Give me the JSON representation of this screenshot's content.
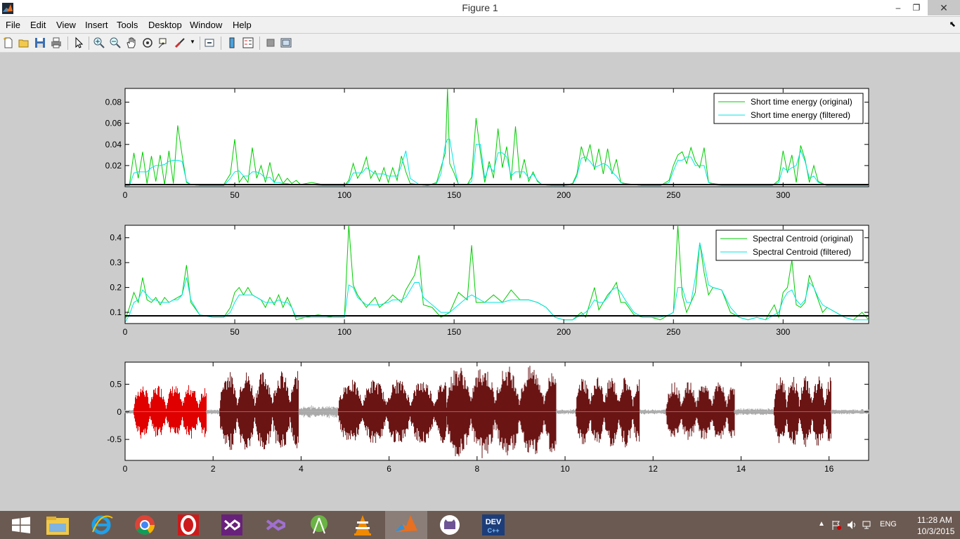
{
  "window": {
    "title": "Figure 1",
    "controls": {
      "minimize": "–",
      "maximize": "❐",
      "close": "✕"
    }
  },
  "menubar": {
    "items": [
      "File",
      "Edit",
      "View",
      "Insert",
      "Tools",
      "Desktop",
      "Window",
      "Help"
    ],
    "overflow_icon": "dock-arrow-icon"
  },
  "toolbar": {
    "buttons": [
      "new-figure-icon",
      "open-file-icon",
      "save-icon",
      "print-icon",
      "edit-plot-arrow-icon",
      "zoom-in-icon",
      "zoom-out-icon",
      "pan-hand-icon",
      "rotate-3d-icon",
      "data-cursor-icon",
      "brush-icon",
      "link-plot-icon",
      "insert-colorbar-icon",
      "insert-legend-icon",
      "hide-plot-tools-icon",
      "show-plot-tools-icon"
    ]
  },
  "colors": {
    "original": "#00cc00",
    "filtered": "#00e5e5",
    "threshold": "#000000",
    "voiced": "#6b1414",
    "selected": "#e00000",
    "silence": "#aaaaaa",
    "background": "#cccccc",
    "taskbar": "#6b5a52"
  },
  "chart_data": [
    {
      "type": "line",
      "title": "",
      "xlabel": "",
      "ylabel": "",
      "xlim": [
        0,
        339
      ],
      "ylim": [
        0,
        0.093
      ],
      "xticks": [
        "0",
        "50",
        "100",
        "150",
        "200",
        "250",
        "300"
      ],
      "yticks": [
        "0.02",
        "0.04",
        "0.06",
        "0.08"
      ],
      "legend_position": "top-right",
      "threshold": 0.002,
      "x": [
        0,
        2,
        4,
        6,
        8,
        10,
        12,
        14,
        16,
        18,
        20,
        22,
        24,
        26,
        28,
        30,
        35,
        40,
        45,
        48,
        50,
        52,
        54,
        56,
        58,
        60,
        62,
        64,
        66,
        68,
        70,
        72,
        74,
        76,
        78,
        80,
        85,
        90,
        95,
        100,
        102,
        104,
        106,
        108,
        110,
        112,
        114,
        116,
        118,
        120,
        122,
        124,
        126,
        128,
        130,
        134,
        138,
        142,
        144,
        146,
        147,
        148,
        150,
        152,
        156,
        158,
        160,
        162,
        164,
        166,
        168,
        170,
        172,
        174,
        176,
        178,
        180,
        182,
        184,
        186,
        188,
        190,
        195,
        200,
        204,
        206,
        208,
        210,
        212,
        214,
        216,
        218,
        220,
        222,
        224,
        226,
        228,
        232,
        236,
        240,
        244,
        248,
        250,
        252,
        254,
        256,
        258,
        260,
        262,
        264,
        266,
        268,
        272,
        280,
        290,
        295,
        298,
        300,
        302,
        304,
        306,
        308,
        310,
        312,
        314,
        316,
        320,
        330,
        339
      ],
      "series": [
        {
          "name": "Short time energy (original)",
          "values": [
            0.001,
            0.002,
            0.032,
            0.008,
            0.033,
            0.003,
            0.029,
            0.005,
            0.03,
            0.002,
            0.034,
            0.003,
            0.058,
            0.03,
            0.004,
            0.002,
            0.001,
            0.001,
            0.002,
            0.012,
            0.045,
            0.004,
            0.01,
            0.004,
            0.037,
            0.008,
            0.02,
            0.004,
            0.023,
            0.004,
            0.012,
            0.003,
            0.008,
            0.003,
            0.006,
            0.002,
            0.004,
            0.002,
            0.001,
            0.001,
            0.006,
            0.022,
            0.008,
            0.015,
            0.028,
            0.008,
            0.015,
            0.005,
            0.018,
            0.004,
            0.018,
            0.006,
            0.029,
            0.014,
            0.003,
            0.002,
            0.001,
            0.004,
            0.018,
            0.032,
            0.094,
            0.022,
            0.013,
            0.002,
            0.002,
            0.009,
            0.065,
            0.032,
            0.004,
            0.024,
            0.008,
            0.055,
            0.018,
            0.038,
            0.006,
            0.057,
            0.008,
            0.026,
            0.005,
            0.014,
            0.005,
            0.002,
            0.001,
            0.001,
            0.003,
            0.012,
            0.038,
            0.024,
            0.04,
            0.016,
            0.036,
            0.012,
            0.036,
            0.012,
            0.026,
            0.004,
            0.003,
            0.002,
            0.001,
            0.001,
            0.001,
            0.006,
            0.02,
            0.03,
            0.033,
            0.022,
            0.037,
            0.024,
            0.018,
            0.037,
            0.004,
            0.003,
            0.002,
            0.001,
            0.002,
            0.001,
            0.006,
            0.034,
            0.013,
            0.03,
            0.004,
            0.039,
            0.026,
            0.004,
            0.02,
            0.005,
            0.001,
            0.001,
            0.001
          ]
        },
        {
          "name": "Short time energy (filtered)",
          "values": [
            0.001,
            0.001,
            0.013,
            0.014,
            0.014,
            0.014,
            0.018,
            0.02,
            0.02,
            0.021,
            0.024,
            0.025,
            0.025,
            0.024,
            0.005,
            0.002,
            0.001,
            0.001,
            0.001,
            0.008,
            0.014,
            0.015,
            0.01,
            0.01,
            0.014,
            0.014,
            0.012,
            0.008,
            0.009,
            0.004,
            0.004,
            0.003,
            0.003,
            0.002,
            0.002,
            0.002,
            0.002,
            0.001,
            0.001,
            0.001,
            0.004,
            0.013,
            0.013,
            0.013,
            0.018,
            0.015,
            0.012,
            0.012,
            0.012,
            0.01,
            0.01,
            0.01,
            0.02,
            0.034,
            0.008,
            0.002,
            0.001,
            0.003,
            0.012,
            0.04,
            0.045,
            0.045,
            0.02,
            0.002,
            0.002,
            0.005,
            0.04,
            0.04,
            0.008,
            0.02,
            0.014,
            0.032,
            0.032,
            0.028,
            0.01,
            0.014,
            0.014,
            0.014,
            0.008,
            0.012,
            0.006,
            0.002,
            0.001,
            0.001,
            0.002,
            0.01,
            0.027,
            0.028,
            0.024,
            0.018,
            0.02,
            0.022,
            0.02,
            0.014,
            0.01,
            0.004,
            0.002,
            0.002,
            0.001,
            0.001,
            0.001,
            0.004,
            0.015,
            0.025,
            0.025,
            0.028,
            0.028,
            0.02,
            0.02,
            0.02,
            0.004,
            0.002,
            0.001,
            0.001,
            0.001,
            0.001,
            0.004,
            0.018,
            0.015,
            0.018,
            0.02,
            0.034,
            0.024,
            0.008,
            0.01,
            0.004,
            0.001,
            0.001,
            0.001
          ]
        }
      ]
    },
    {
      "type": "line",
      "title": "",
      "xlabel": "",
      "ylabel": "",
      "xlim": [
        0,
        339
      ],
      "ylim": [
        0.055,
        0.45
      ],
      "xticks": [
        "0",
        "50",
        "100",
        "150",
        "200",
        "250",
        "300"
      ],
      "yticks": [
        "0.1",
        "0.2",
        "0.3",
        "0.4"
      ],
      "legend_position": "top-right",
      "threshold": 0.086,
      "x": [
        0,
        2,
        4,
        6,
        8,
        10,
        12,
        14,
        16,
        18,
        20,
        22,
        24,
        26,
        28,
        30,
        34,
        40,
        45,
        48,
        50,
        52,
        54,
        56,
        58,
        60,
        62,
        64,
        66,
        68,
        70,
        72,
        74,
        76,
        78,
        82,
        88,
        95,
        100,
        102,
        104,
        106,
        110,
        114,
        116,
        120,
        122,
        126,
        128,
        130,
        132,
        134,
        136,
        140,
        144,
        148,
        152,
        156,
        158,
        160,
        164,
        168,
        172,
        176,
        180,
        184,
        188,
        192,
        196,
        200,
        204,
        208,
        210,
        212,
        214,
        216,
        218,
        220,
        222,
        224,
        226,
        228,
        232,
        236,
        240,
        244,
        248,
        250,
        252,
        254,
        256,
        258,
        260,
        262,
        264,
        266,
        268,
        272,
        276,
        280,
        284,
        288,
        292,
        296,
        298,
        300,
        302,
        304,
        306,
        308,
        310,
        312,
        314,
        316,
        318,
        320,
        324,
        328,
        332,
        336,
        339
      ],
      "series": [
        {
          "name": "Spectral Centroid (original)",
          "values": [
            0.07,
            0.12,
            0.18,
            0.14,
            0.24,
            0.15,
            0.14,
            0.16,
            0.13,
            0.16,
            0.14,
            0.15,
            0.16,
            0.17,
            0.29,
            0.14,
            0.09,
            0.08,
            0.08,
            0.12,
            0.18,
            0.2,
            0.17,
            0.2,
            0.17,
            0.16,
            0.15,
            0.12,
            0.16,
            0.13,
            0.17,
            0.12,
            0.16,
            0.12,
            0.07,
            0.08,
            0.09,
            0.08,
            0.08,
            0.46,
            0.21,
            0.17,
            0.12,
            0.16,
            0.12,
            0.15,
            0.17,
            0.14,
            0.19,
            0.22,
            0.25,
            0.33,
            0.13,
            0.12,
            0.08,
            0.1,
            0.18,
            0.15,
            0.37,
            0.14,
            0.14,
            0.17,
            0.14,
            0.19,
            0.15,
            0.15,
            0.14,
            0.12,
            0.08,
            0.07,
            0.07,
            0.1,
            0.08,
            0.14,
            0.2,
            0.11,
            0.14,
            0.17,
            0.19,
            0.22,
            0.14,
            0.14,
            0.09,
            0.08,
            0.08,
            0.07,
            0.09,
            0.1,
            0.45,
            0.17,
            0.1,
            0.14,
            0.18,
            0.38,
            0.26,
            0.17,
            0.2,
            0.19,
            0.1,
            0.08,
            0.07,
            0.08,
            0.07,
            0.13,
            0.08,
            0.18,
            0.2,
            0.31,
            0.13,
            0.12,
            0.14,
            0.25,
            0.2,
            0.15,
            0.1,
            0.12,
            0.1,
            0.08,
            0.07,
            0.1,
            0.07
          ]
        },
        {
          "name": "Spectral Centroid (filtered)",
          "values": [
            0.06,
            0.09,
            0.14,
            0.15,
            0.19,
            0.17,
            0.15,
            0.15,
            0.14,
            0.14,
            0.14,
            0.15,
            0.15,
            0.17,
            0.24,
            0.15,
            0.09,
            0.08,
            0.08,
            0.1,
            0.14,
            0.17,
            0.17,
            0.17,
            0.17,
            0.16,
            0.15,
            0.14,
            0.14,
            0.14,
            0.15,
            0.14,
            0.14,
            0.12,
            0.08,
            0.08,
            0.08,
            0.08,
            0.08,
            0.21,
            0.2,
            0.16,
            0.13,
            0.13,
            0.13,
            0.14,
            0.15,
            0.15,
            0.16,
            0.19,
            0.22,
            0.22,
            0.16,
            0.13,
            0.1,
            0.1,
            0.13,
            0.16,
            0.17,
            0.16,
            0.14,
            0.14,
            0.14,
            0.15,
            0.15,
            0.15,
            0.14,
            0.12,
            0.08,
            0.07,
            0.07,
            0.09,
            0.1,
            0.12,
            0.15,
            0.14,
            0.14,
            0.16,
            0.19,
            0.2,
            0.18,
            0.15,
            0.1,
            0.08,
            0.08,
            0.08,
            0.09,
            0.1,
            0.2,
            0.2,
            0.14,
            0.14,
            0.24,
            0.38,
            0.3,
            0.21,
            0.2,
            0.19,
            0.12,
            0.08,
            0.07,
            0.08,
            0.07,
            0.09,
            0.1,
            0.15,
            0.18,
            0.19,
            0.15,
            0.13,
            0.15,
            0.22,
            0.2,
            0.16,
            0.13,
            0.12,
            0.1,
            0.08,
            0.07,
            0.07,
            0.07
          ]
        }
      ]
    },
    {
      "type": "area",
      "title": "",
      "xlabel": "",
      "ylabel": "",
      "xlim": [
        0,
        16.9
      ],
      "ylim": [
        -0.88,
        0.9
      ],
      "xticks": [
        "0",
        "2",
        "4",
        "6",
        "8",
        "10",
        "12",
        "14",
        "16"
      ],
      "yticks": [
        "0.5",
        "0",
        "-0.5"
      ],
      "segments": [
        {
          "start": 0.0,
          "end": 0.2,
          "class": "silence",
          "amp": 0.05
        },
        {
          "start": 0.2,
          "end": 1.85,
          "class": "selected",
          "amp": 0.5
        },
        {
          "start": 1.85,
          "end": 2.15,
          "class": "silence",
          "amp": 0.05
        },
        {
          "start": 2.15,
          "end": 3.95,
          "class": "voiced",
          "amp": 0.75
        },
        {
          "start": 3.95,
          "end": 4.85,
          "class": "silence",
          "amp": 0.12
        },
        {
          "start": 4.85,
          "end": 7.3,
          "class": "voiced",
          "amp": 0.6
        },
        {
          "start": 7.3,
          "end": 9.8,
          "class": "voiced",
          "amp": 0.85
        },
        {
          "start": 9.8,
          "end": 10.25,
          "class": "silence",
          "amp": 0.05
        },
        {
          "start": 10.25,
          "end": 11.7,
          "class": "voiced",
          "amp": 0.65
        },
        {
          "start": 11.7,
          "end": 12.3,
          "class": "silence",
          "amp": 0.05
        },
        {
          "start": 12.3,
          "end": 13.85,
          "class": "voiced",
          "amp": 0.55
        },
        {
          "start": 13.85,
          "end": 14.75,
          "class": "silence",
          "amp": 0.07
        },
        {
          "start": 14.75,
          "end": 16.05,
          "class": "voiced",
          "amp": 0.65
        },
        {
          "start": 16.05,
          "end": 16.9,
          "class": "silence",
          "amp": 0.05
        }
      ]
    }
  ],
  "taskbar": {
    "items": [
      "windows-start-icon",
      "file-explorer-icon",
      "internet-explorer-icon",
      "chrome-icon",
      "opera-icon",
      "visual-studio-icon",
      "visual-studio-2-icon",
      "android-studio-icon",
      "vlc-icon",
      "matlab-icon",
      "github-icon",
      "devcpp-icon"
    ],
    "active_index": 9,
    "devcpp_label": "DEV",
    "devcpp_sub": "C++",
    "language": "ENG",
    "time": "11:28 AM",
    "date": "10/3/2015"
  }
}
